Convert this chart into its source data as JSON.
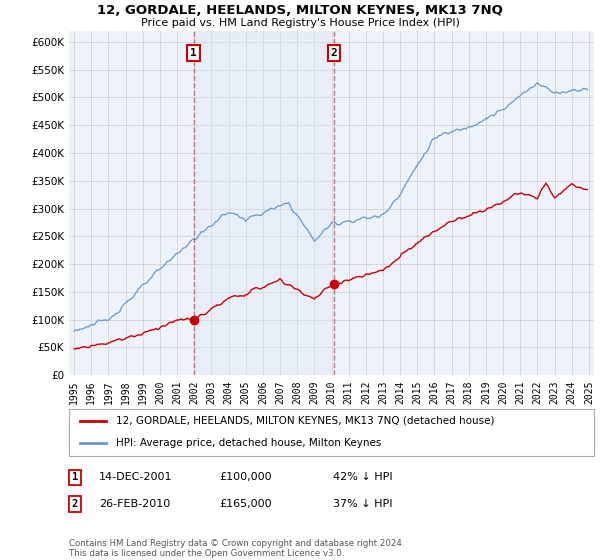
{
  "title": "12, GORDALE, HEELANDS, MILTON KEYNES, MK13 7NQ",
  "subtitle": "Price paid vs. HM Land Registry's House Price Index (HPI)",
  "legend_label_red": "12, GORDALE, HEELANDS, MILTON KEYNES, MK13 7NQ (detached house)",
  "legend_label_blue": "HPI: Average price, detached house, Milton Keynes",
  "footnote": "Contains HM Land Registry data © Crown copyright and database right 2024.\nThis data is licensed under the Open Government Licence v3.0.",
  "marker1_date": "14-DEC-2001",
  "marker1_price": "£100,000",
  "marker1_hpi": "42% ↓ HPI",
  "marker1_year": 2001.96,
  "marker1_value": 100000,
  "marker2_date": "26-FEB-2010",
  "marker2_price": "£165,000",
  "marker2_hpi": "37% ↓ HPI",
  "marker2_year": 2010.15,
  "marker2_value": 165000,
  "ylim": [
    0,
    620000
  ],
  "xlim_start": 1994.7,
  "xlim_end": 2025.3,
  "plot_bg_color": "#eef2fa",
  "red_color": "#cc0000",
  "blue_color": "#6699cc",
  "shade_color": "#dce8f5",
  "grid_color": "#cccccc"
}
